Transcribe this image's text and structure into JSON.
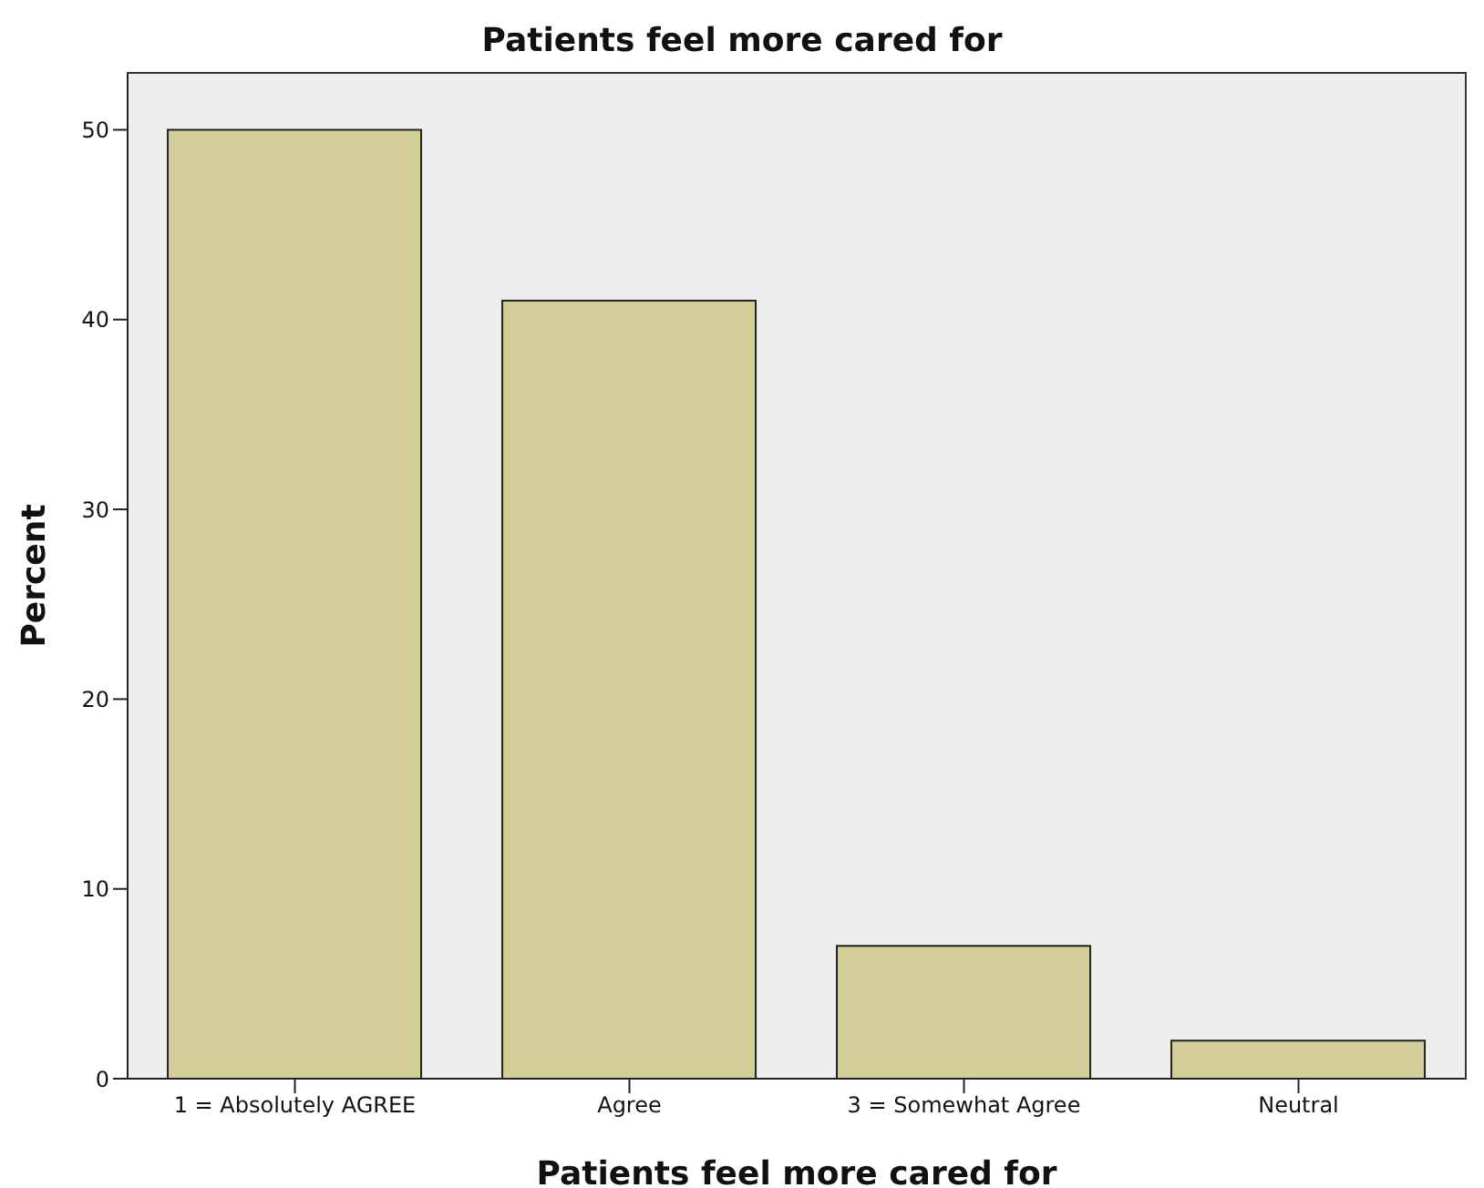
{
  "chart_data": {
    "type": "bar",
    "title": "Patients feel more cared for",
    "xlabel": "Patients feel more cared for",
    "ylabel": "Percent",
    "categories": [
      "1 = Absolutely AGREE",
      "Agree",
      "3 = Somewhat Agree",
      "Neutral"
    ],
    "values": [
      50,
      41,
      7,
      2
    ],
    "color": "#d3ce98",
    "ylim": [
      0,
      53
    ],
    "yticks": [
      0,
      10,
      20,
      30,
      40,
      50
    ]
  }
}
